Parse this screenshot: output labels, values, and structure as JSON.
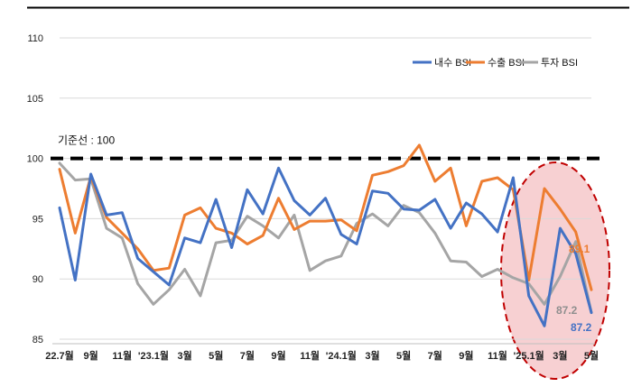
{
  "chart_data": {
    "type": "line",
    "title": "",
    "xlabel": "",
    "ylabel": "",
    "ylim": [
      85,
      110
    ],
    "yticks": [
      85,
      90,
      95,
      100,
      105,
      110
    ],
    "x_tick_labels": [
      "22.7월",
      "9월",
      "11월",
      "'23.1월",
      "3월",
      "5월",
      "7월",
      "9월",
      "11월",
      "'24.1월",
      "3월",
      "5월",
      "7월",
      "9월",
      "11월",
      "'25.1월",
      "3월",
      "5월"
    ],
    "reference_line": {
      "value": 100,
      "label": "기준선 : 100"
    },
    "legend": {
      "position": "top-right"
    },
    "series": [
      {
        "name": "내수 BSI",
        "color": "#4472C4",
        "values": [
          95.9,
          89.9,
          98.7,
          95.3,
          95.5,
          91.7,
          90.6,
          89.5,
          93.4,
          93.0,
          96.6,
          92.6,
          97.4,
          95.4,
          99.2,
          96.5,
          95.3,
          96.7,
          93.7,
          92.9,
          97.3,
          97.1,
          95.8,
          95.7,
          96.6,
          94.2,
          96.3,
          95.4,
          93.9,
          98.4,
          88.6,
          86.1,
          94.2,
          92.1,
          87.2
        ]
      },
      {
        "name": "수출 BSI",
        "color": "#ED7D31",
        "values": [
          99.1,
          93.8,
          98.5,
          95.1,
          93.8,
          92.5,
          90.7,
          90.9,
          95.3,
          95.9,
          94.2,
          93.8,
          92.9,
          93.6,
          96.7,
          94.1,
          94.8,
          94.8,
          94.9,
          94.0,
          98.6,
          98.9,
          99.4,
          101.1,
          98.1,
          99.2,
          94.4,
          98.1,
          98.4,
          97.4,
          89.9,
          97.5,
          95.8,
          93.9,
          89.1
        ]
      },
      {
        "name": "투자 BSI",
        "color": "#A5A5A5",
        "values": [
          99.6,
          98.2,
          98.3,
          94.2,
          93.4,
          89.6,
          87.9,
          89.1,
          90.8,
          88.6,
          93.0,
          93.2,
          95.2,
          94.4,
          93.4,
          95.3,
          90.7,
          91.5,
          91.9,
          94.6,
          95.4,
          94.4,
          96.1,
          95.5,
          93.8,
          91.5,
          91.4,
          90.2,
          90.8,
          90.1,
          89.6,
          87.9,
          90.2,
          93.1,
          87.2
        ]
      }
    ],
    "end_labels": [
      "89.1",
      "87.2",
      "87.2"
    ],
    "highlight": "최근 구간 강조 (타원)"
  }
}
